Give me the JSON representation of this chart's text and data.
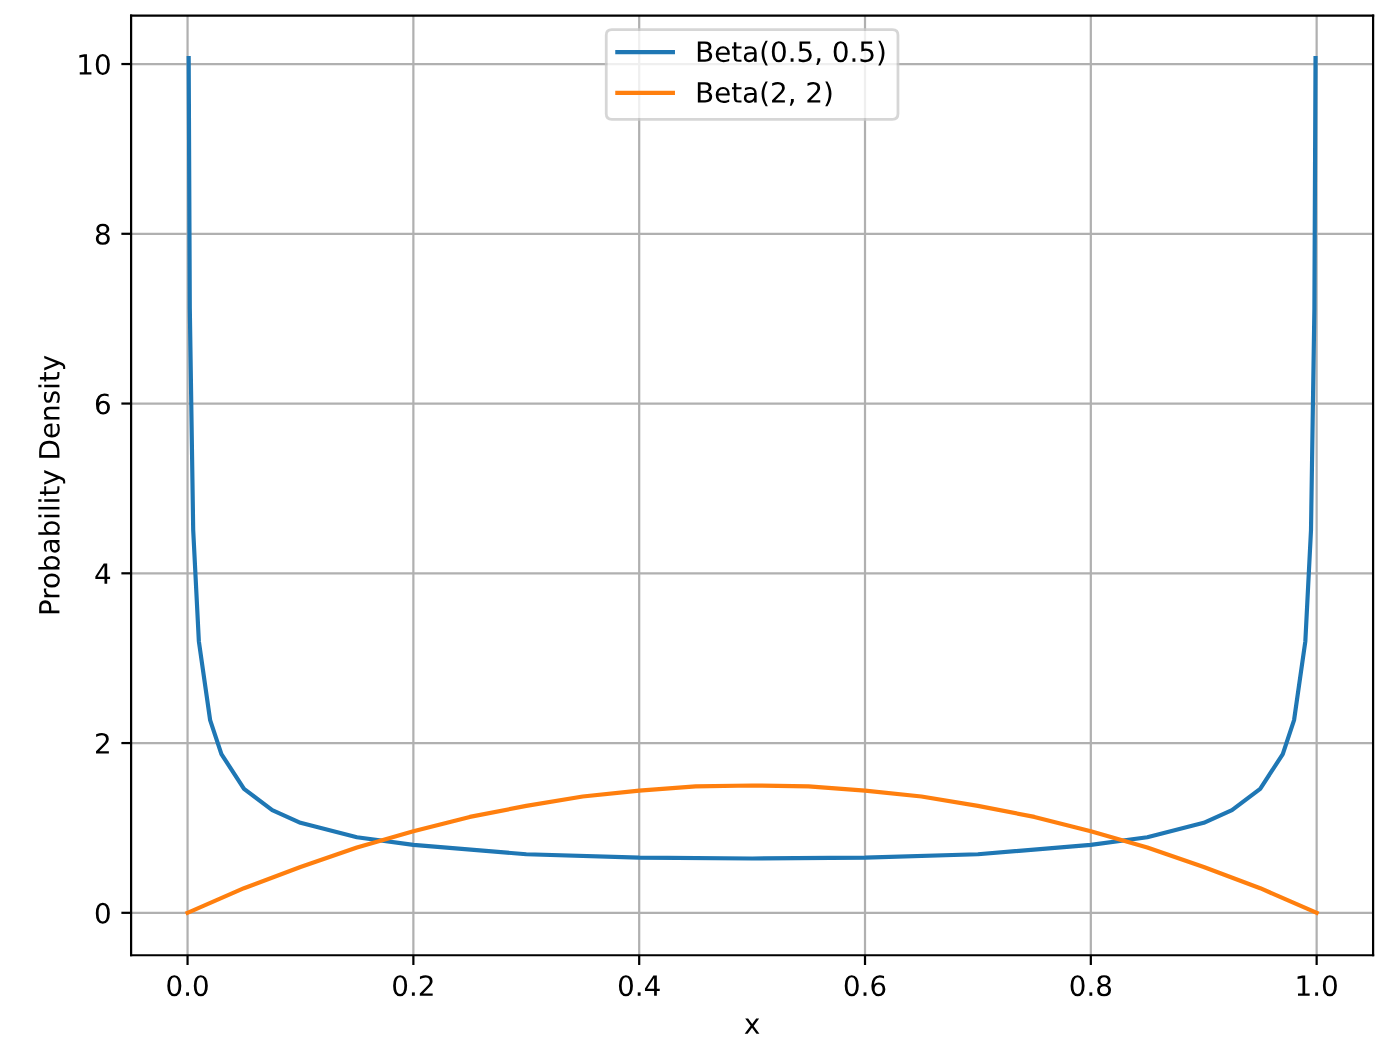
{
  "chart_data": {
    "type": "line",
    "xlabel": "x",
    "ylabel": "Probability Density",
    "series": [
      {
        "name": "Beta(0.5, 0.5)",
        "color": "#1f77b4",
        "x": [
          0.001,
          0.002,
          0.005,
          0.01,
          0.02,
          0.03,
          0.05,
          0.075,
          0.1,
          0.15,
          0.2,
          0.3,
          0.4,
          0.5,
          0.6,
          0.7,
          0.8,
          0.85,
          0.9,
          0.925,
          0.95,
          0.97,
          0.98,
          0.99,
          0.995,
          0.998,
          0.999
        ],
        "values": [
          10.07,
          7.12,
          4.51,
          3.2,
          2.27,
          1.87,
          1.46,
          1.21,
          1.06,
          0.89,
          0.8,
          0.69,
          0.65,
          0.64,
          0.65,
          0.69,
          0.8,
          0.89,
          1.06,
          1.21,
          1.46,
          1.87,
          2.27,
          3.2,
          4.51,
          7.12,
          10.07
        ]
      },
      {
        "name": "Beta(2, 2)",
        "color": "#ff7f0e",
        "x": [
          0,
          0.05,
          0.1,
          0.15,
          0.2,
          0.25,
          0.3,
          0.35,
          0.4,
          0.45,
          0.5,
          0.55,
          0.6,
          0.65,
          0.7,
          0.75,
          0.8,
          0.85,
          0.9,
          0.95,
          1.0
        ],
        "values": [
          0,
          0.29,
          0.54,
          0.77,
          0.96,
          1.13,
          1.26,
          1.37,
          1.44,
          1.49,
          1.5,
          1.49,
          1.44,
          1.37,
          1.26,
          1.13,
          0.96,
          0.77,
          0.54,
          0.29,
          0
        ]
      }
    ],
    "xlim": [
      -0.05,
      1.05
    ],
    "ylim": [
      -0.5,
      10.57
    ],
    "xticks": [
      {
        "value": 0,
        "label": "0.0"
      },
      {
        "value": 0.2,
        "label": "0.2"
      },
      {
        "value": 0.4,
        "label": "0.4"
      },
      {
        "value": 0.6,
        "label": "0.6"
      },
      {
        "value": 0.8,
        "label": "0.8"
      },
      {
        "value": 1.0,
        "label": "1.0"
      }
    ],
    "yticks": [
      0,
      2,
      4,
      6,
      8,
      10
    ],
    "grid": true,
    "legend": "top",
    "marker": "none",
    "line_style": "solid"
  }
}
